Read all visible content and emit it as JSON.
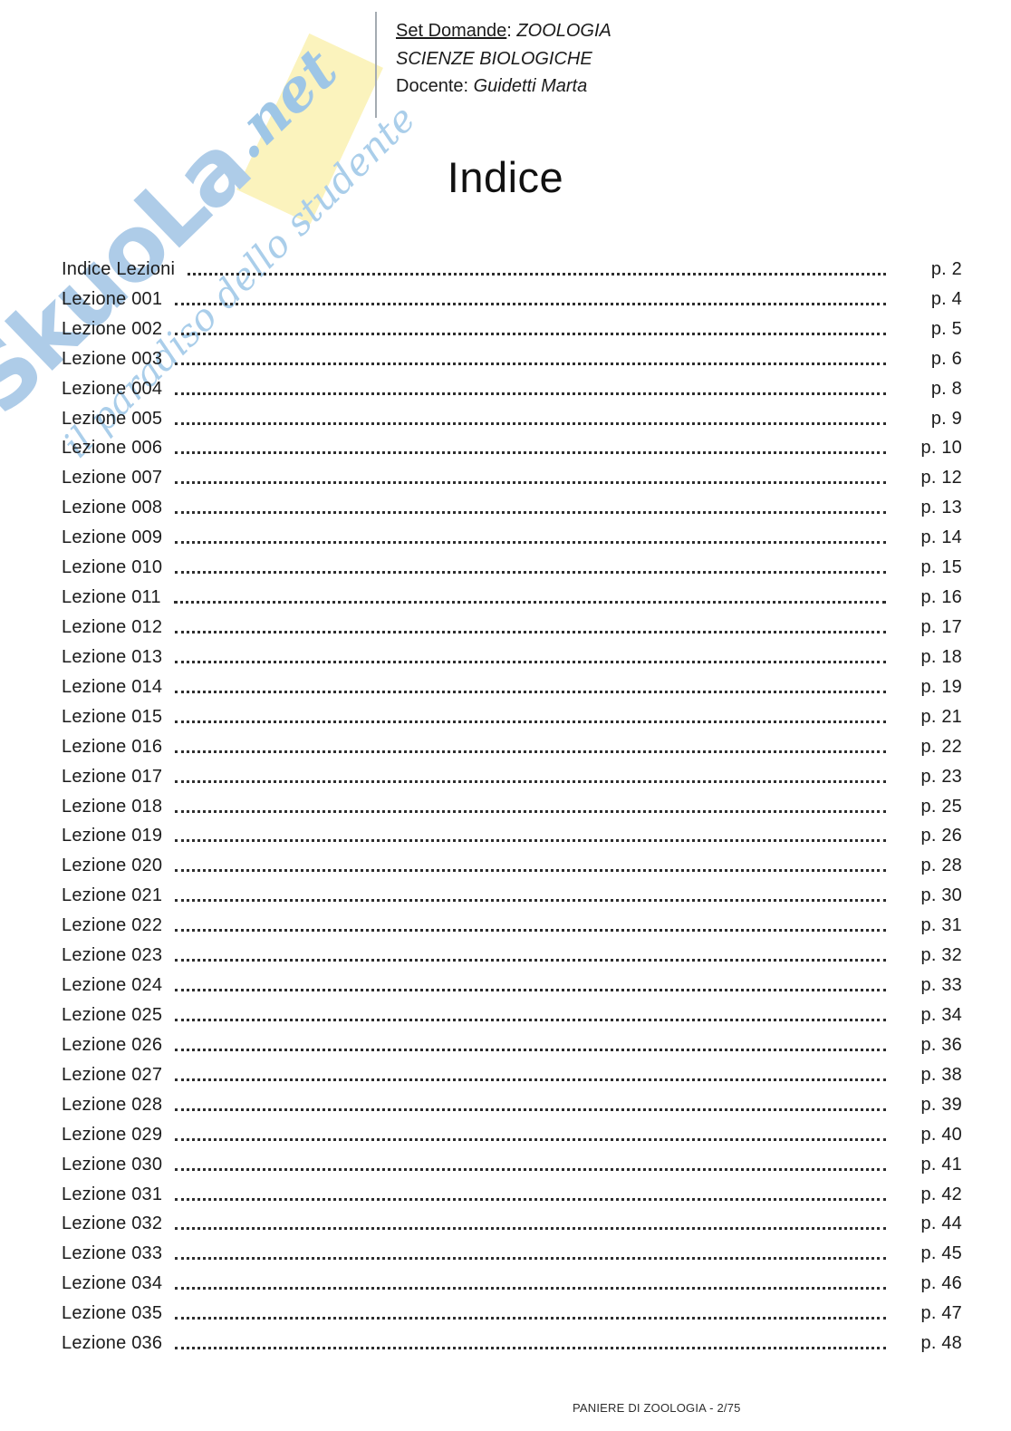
{
  "header": {
    "line1_label": "Set Domande",
    "line1_sep": ": ",
    "line1_value": "ZOOLOGIA",
    "line2": "SCIENZE BIOLOGICHE",
    "line3_label": "Docente: ",
    "line3_value": "Guidetti Marta"
  },
  "title": "Indice",
  "watermark": {
    "brand": "SkuoLa",
    "brand_suffix": ".net",
    "tagline": "il paradiso dello studente",
    "colors": {
      "letters": "#aecce8",
      "suffix": "#9ec6e6",
      "tagline": "#aaceea",
      "accent_block": "#fbf3bd"
    }
  },
  "toc": {
    "entries": [
      {
        "label": "Indice Lezioni",
        "page": "p. 2"
      },
      {
        "label": "Lezione 001",
        "page": "p. 4"
      },
      {
        "label": "Lezione 002",
        "page": "p. 5"
      },
      {
        "label": "Lezione 003",
        "page": "p. 6"
      },
      {
        "label": "Lezione 004",
        "page": "p. 8"
      },
      {
        "label": "Lezione 005",
        "page": "p. 9"
      },
      {
        "label": "Lezione 006",
        "page": "p. 10"
      },
      {
        "label": "Lezione 007",
        "page": "p. 12"
      },
      {
        "label": "Lezione 008",
        "page": "p. 13"
      },
      {
        "label": "Lezione 009",
        "page": "p. 14"
      },
      {
        "label": "Lezione 010",
        "page": "p. 15"
      },
      {
        "label": "Lezione 011",
        "page": "p. 16"
      },
      {
        "label": "Lezione 012",
        "page": "p. 17"
      },
      {
        "label": "Lezione 013",
        "page": "p. 18"
      },
      {
        "label": "Lezione 014",
        "page": "p. 19"
      },
      {
        "label": "Lezione 015",
        "page": "p. 21"
      },
      {
        "label": "Lezione 016",
        "page": "p. 22"
      },
      {
        "label": "Lezione 017",
        "page": "p. 23"
      },
      {
        "label": "Lezione 018",
        "page": "p. 25"
      },
      {
        "label": "Lezione 019",
        "page": "p. 26"
      },
      {
        "label": "Lezione 020",
        "page": "p. 28"
      },
      {
        "label": "Lezione 021",
        "page": "p. 30"
      },
      {
        "label": "Lezione 022",
        "page": "p. 31"
      },
      {
        "label": "Lezione 023",
        "page": "p. 32"
      },
      {
        "label": "Lezione 024",
        "page": "p. 33"
      },
      {
        "label": "Lezione 025",
        "page": "p. 34"
      },
      {
        "label": "Lezione 026",
        "page": "p. 36"
      },
      {
        "label": "Lezione 027",
        "page": "p. 38"
      },
      {
        "label": "Lezione 028",
        "page": "p. 39"
      },
      {
        "label": "Lezione 029",
        "page": "p. 40"
      },
      {
        "label": "Lezione 030",
        "page": "p. 41"
      },
      {
        "label": "Lezione 031",
        "page": "p. 42"
      },
      {
        "label": "Lezione 032",
        "page": "p. 44"
      },
      {
        "label": "Lezione 033",
        "page": "p. 45"
      },
      {
        "label": "Lezione 034",
        "page": "p. 46"
      },
      {
        "label": "Lezione 035",
        "page": "p. 47"
      },
      {
        "label": "Lezione 036",
        "page": "p. 48"
      }
    ]
  },
  "footer": {
    "text": "PANIERE DI ZOOLOGIA - 2/75"
  }
}
